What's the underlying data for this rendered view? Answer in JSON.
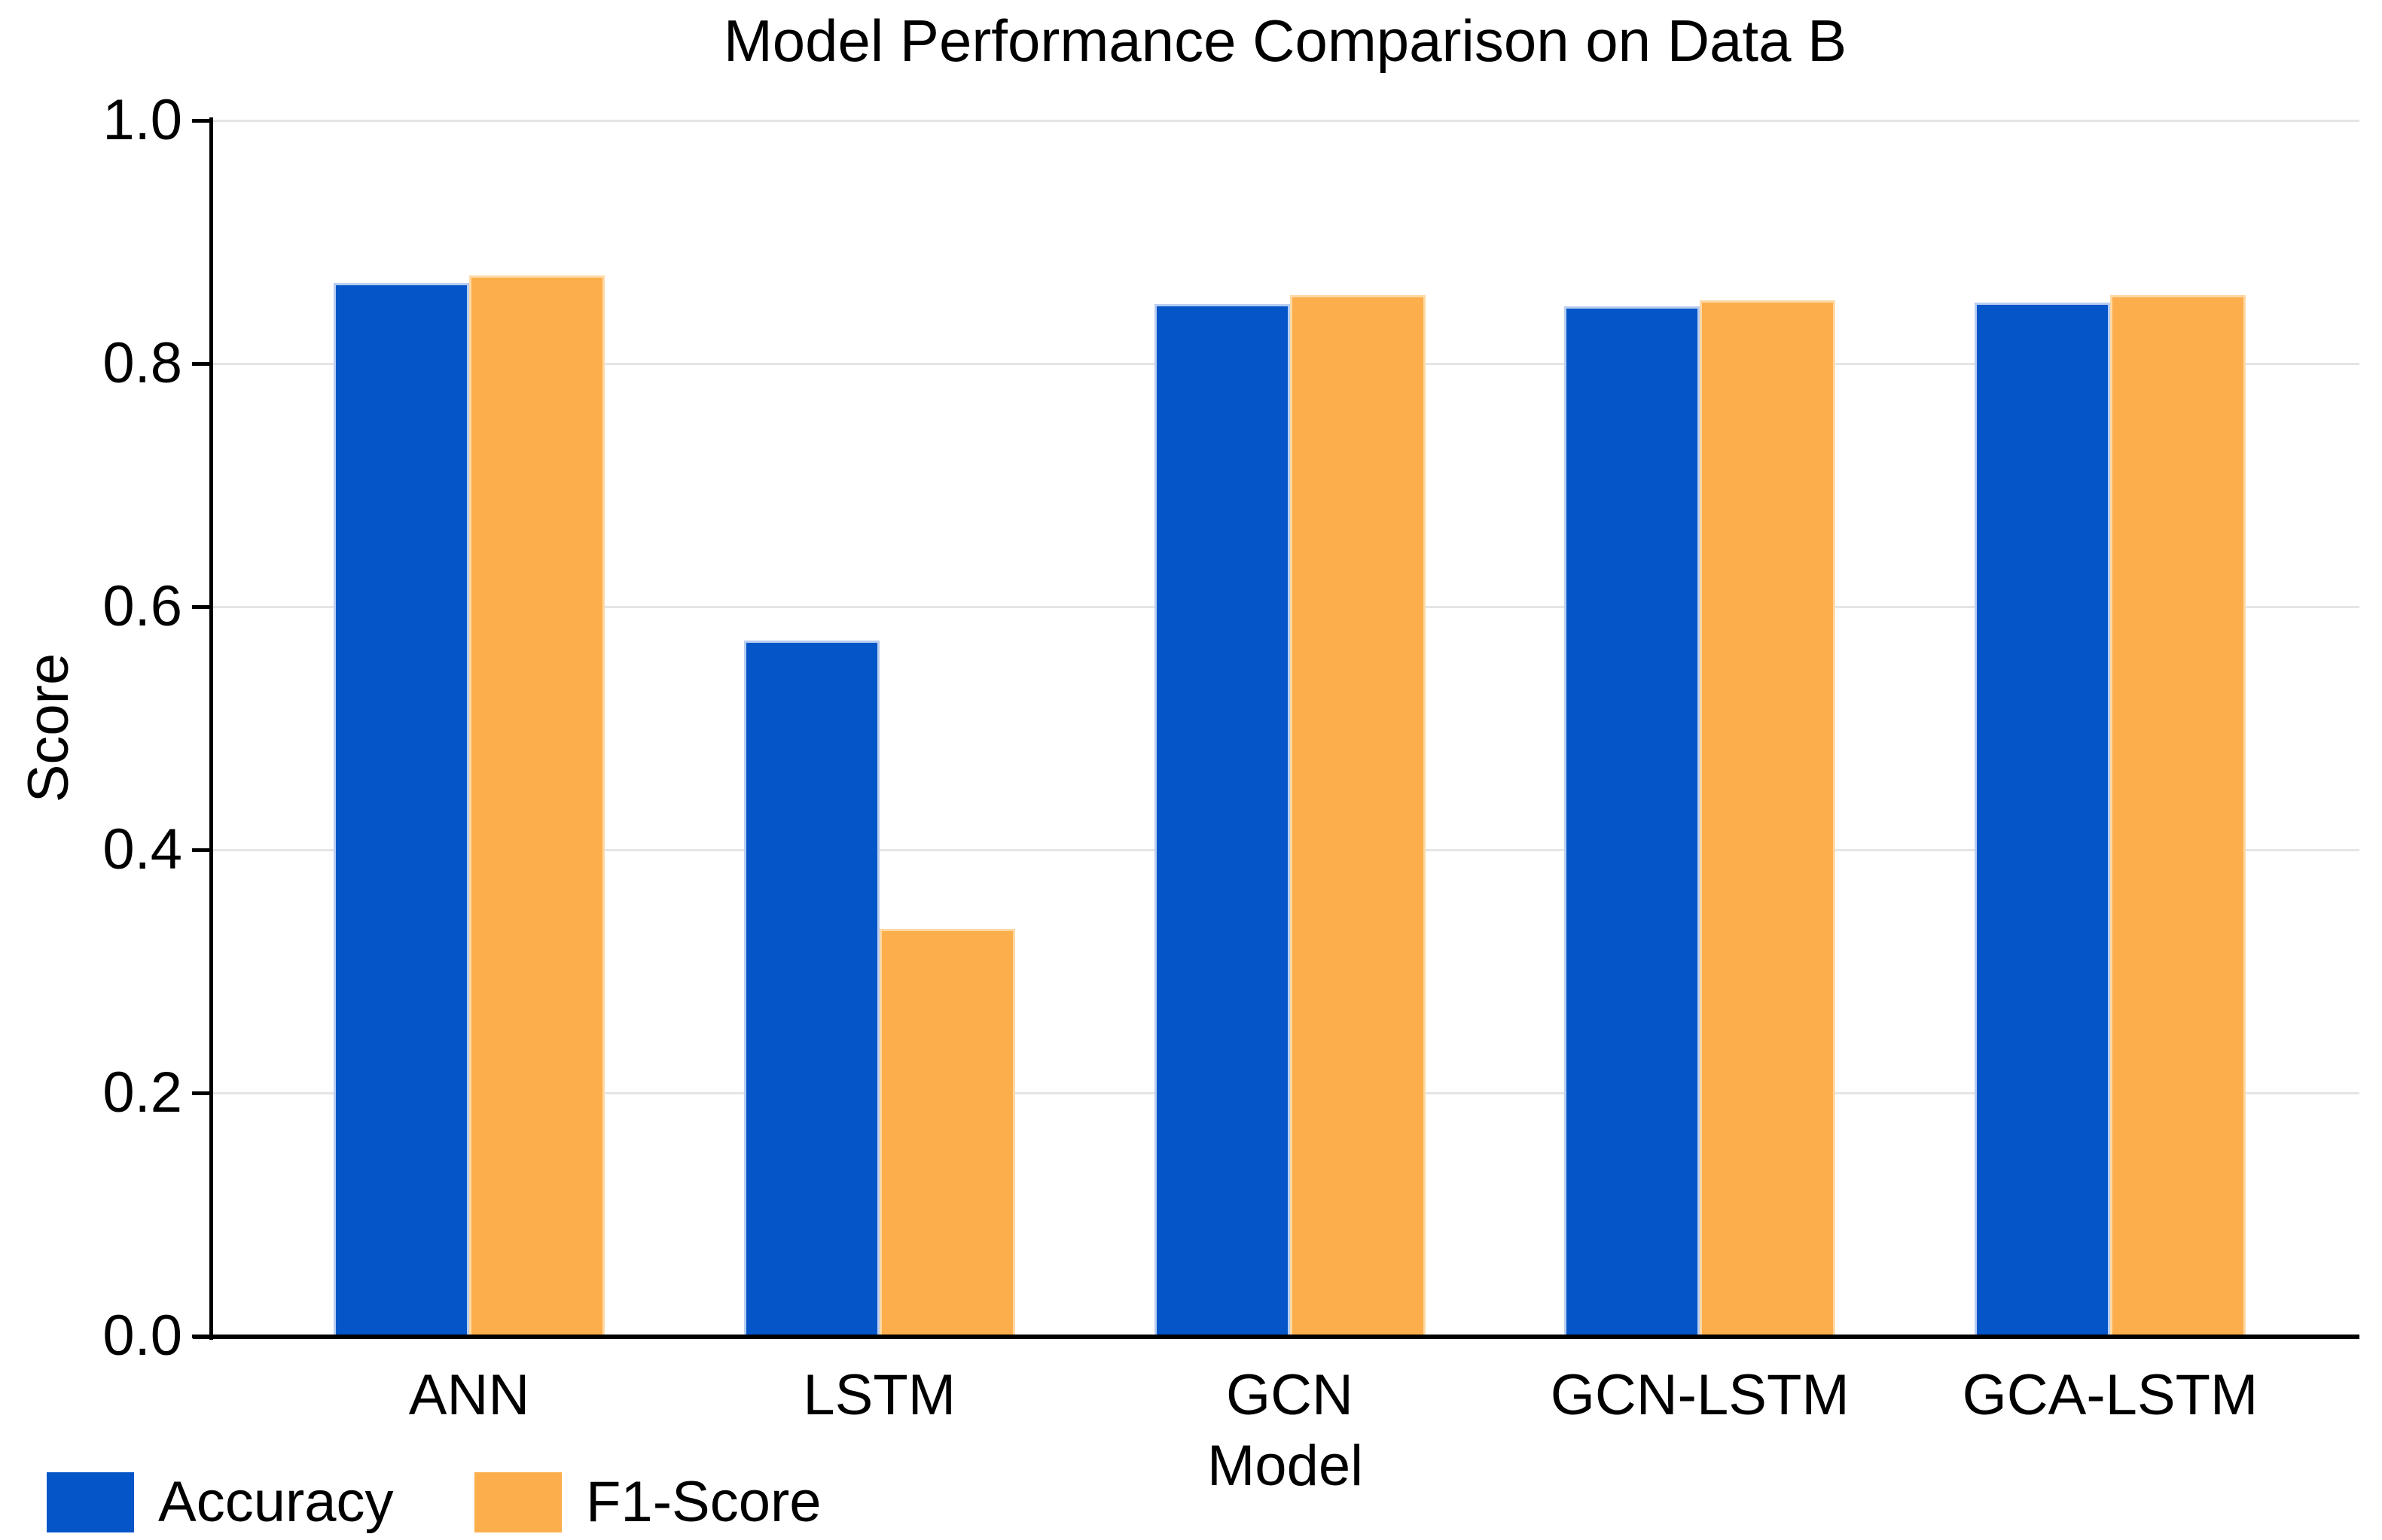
{
  "chart_data": {
    "type": "bar",
    "title": "Model Performance Comparison on Data B",
    "xlabel": "Model",
    "ylabel": "Score",
    "categories": [
      "ANN",
      "LSTM",
      "GCN",
      "GCN-LSTM",
      "GCA-LSTM"
    ],
    "series": [
      {
        "name": "Accuracy",
        "color": "#0456c8",
        "edge_color": "#b8cdf0",
        "values": [
          0.868,
          0.574,
          0.851,
          0.849,
          0.852
        ]
      },
      {
        "name": "F1-Score",
        "color": "#fdae4c",
        "edge_color": "#fed9a4",
        "values": [
          0.874,
          0.337,
          0.858,
          0.854,
          0.858
        ]
      }
    ],
    "ylim": [
      0.0,
      1.0
    ],
    "yticks": [
      "0.0",
      "0.2",
      "0.4",
      "0.6",
      "0.8",
      "1.0"
    ],
    "grid": "horizontal",
    "legend_position": "bottom-left",
    "colors": {
      "grid": "#e5e5e5",
      "axis": "#000000",
      "text": "#000000",
      "background": "#ffffff"
    }
  }
}
